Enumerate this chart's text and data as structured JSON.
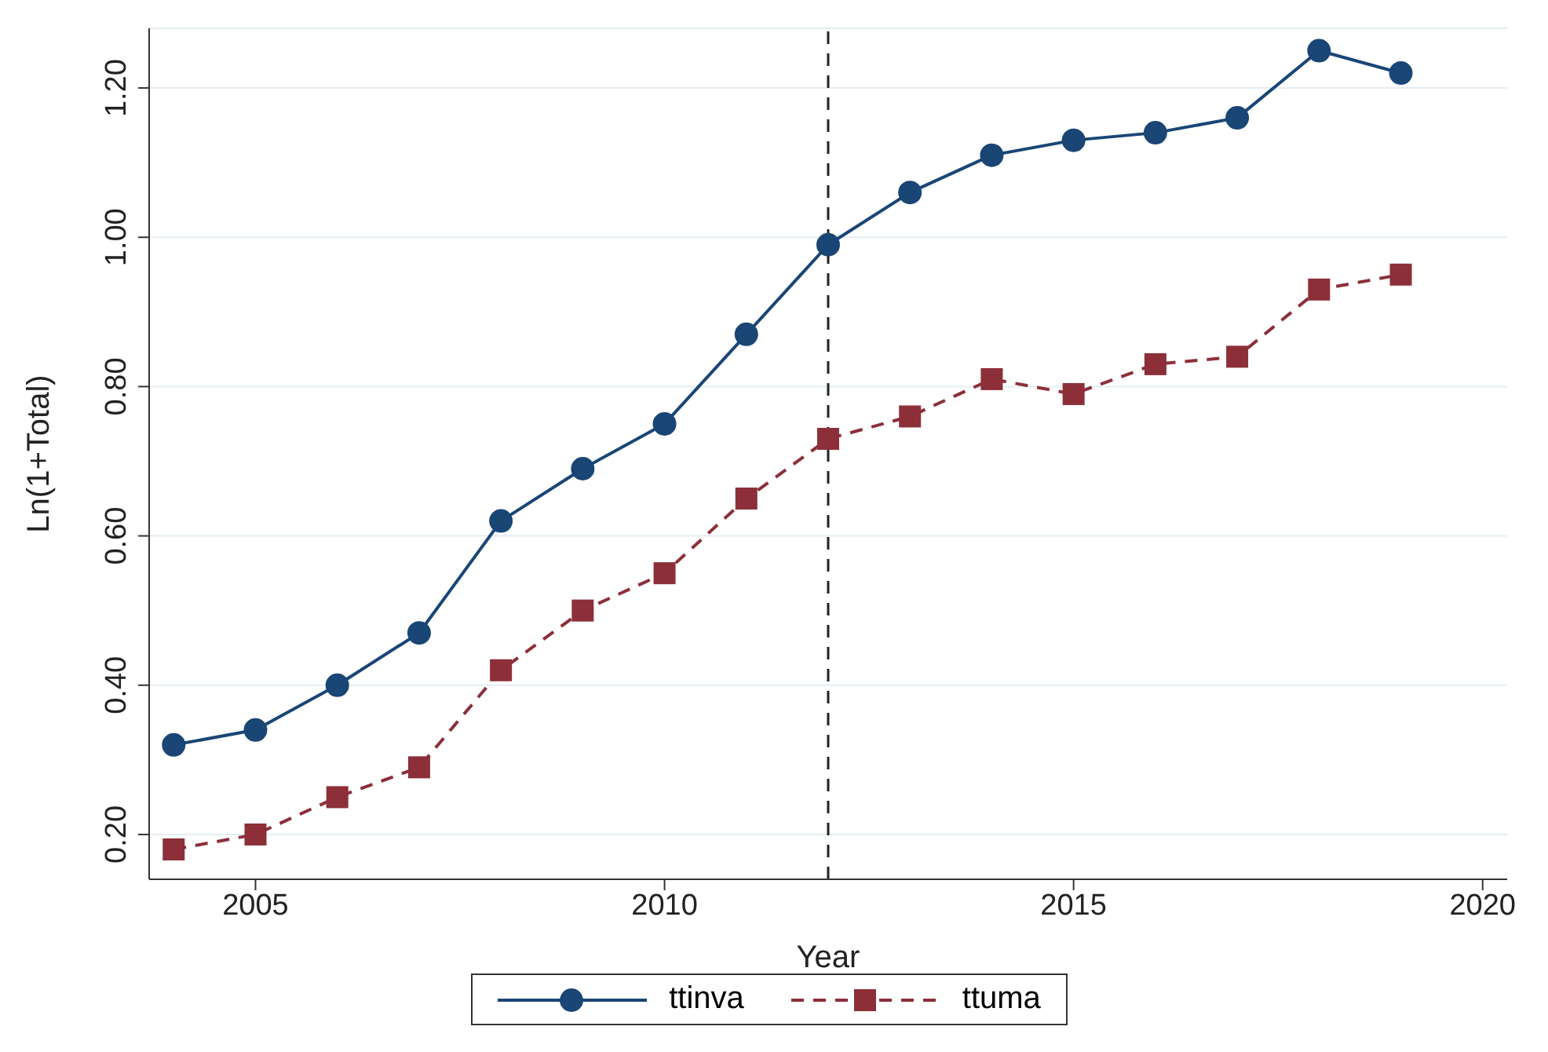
{
  "chart_data": {
    "type": "line",
    "xlabel": "Year",
    "ylabel": "Ln(1+Total)",
    "x": [
      2004,
      2005,
      2006,
      2007,
      2008,
      2009,
      2010,
      2011,
      2012,
      2013,
      2014,
      2015,
      2016,
      2017,
      2018,
      2019
    ],
    "series": [
      {
        "name": "ttinva",
        "color": "#1a4676",
        "marker": "circle",
        "line_style": "solid",
        "values": [
          0.32,
          0.34,
          0.4,
          0.47,
          0.62,
          0.69,
          0.75,
          0.87,
          0.99,
          1.06,
          1.11,
          1.13,
          1.14,
          1.16,
          1.25,
          1.22
        ]
      },
      {
        "name": "ttuma",
        "color": "#8c2f39",
        "marker": "square",
        "line_style": "dashed",
        "values": [
          0.18,
          0.2,
          0.25,
          0.29,
          0.42,
          0.5,
          0.55,
          0.65,
          0.73,
          0.76,
          0.81,
          0.79,
          0.83,
          0.84,
          0.93,
          0.95
        ]
      }
    ],
    "xlim": [
      2003.7,
      2020.3
    ],
    "xticks": [
      2005,
      2010,
      2015,
      2020
    ],
    "ylim": [
      0.14,
      1.28
    ],
    "yticks": [
      {
        "value": 0.2,
        "label": "0.20"
      },
      {
        "value": 0.4,
        "label": "0.40"
      },
      {
        "value": 0.6,
        "label": "0.60"
      },
      {
        "value": 0.8,
        "label": "0.80"
      },
      {
        "value": 1.0,
        "label": "1.00"
      },
      {
        "value": 1.2,
        "label": "1.20"
      }
    ],
    "ref_lines": [
      {
        "axis": "x",
        "value": 2012,
        "color": "#222222",
        "line_style": "dashed"
      }
    ],
    "grid": "y",
    "legend": "bottom"
  }
}
